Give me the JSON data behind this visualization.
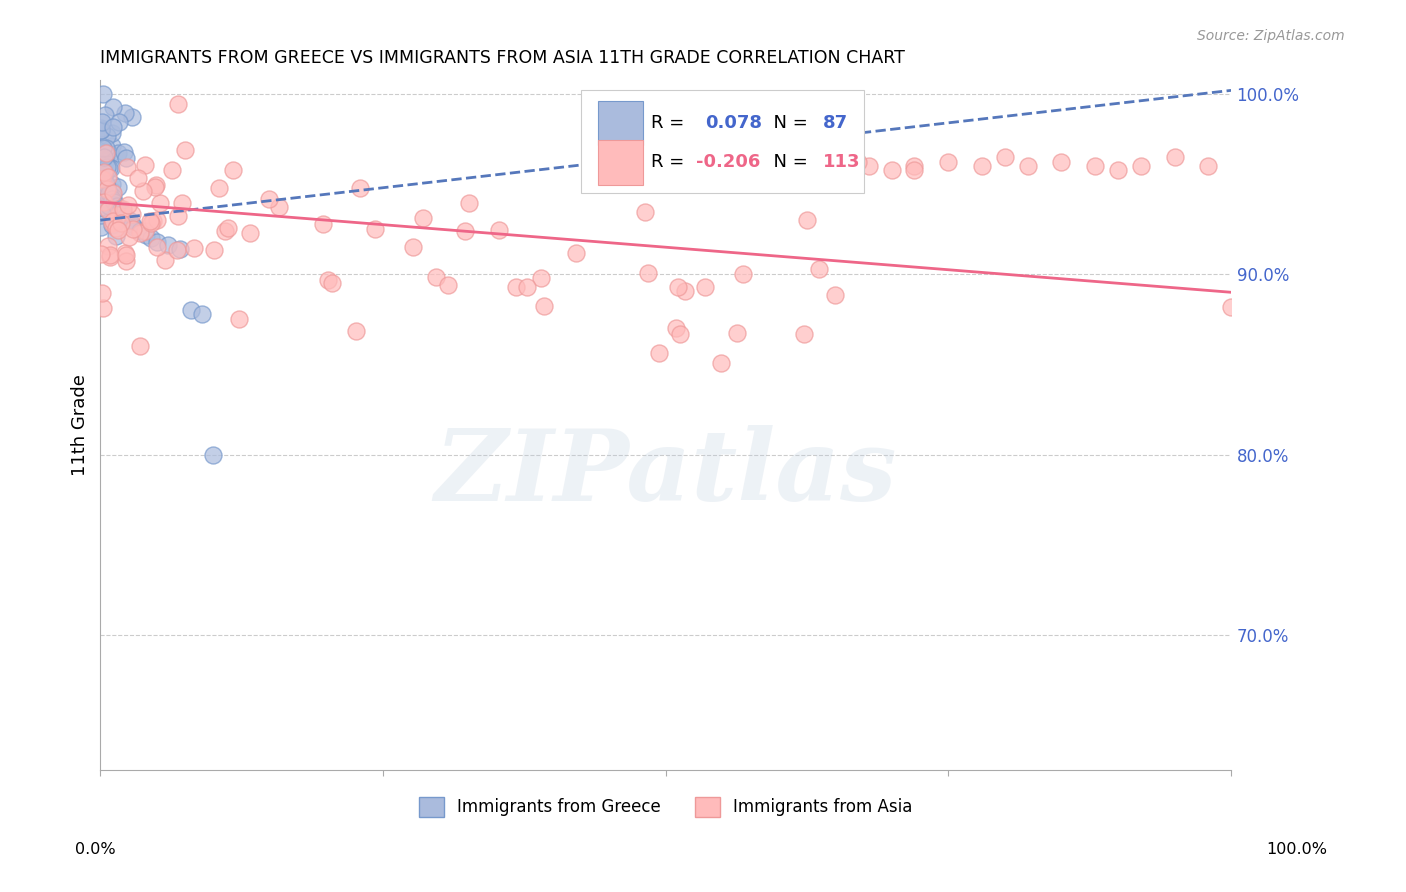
{
  "title": "IMMIGRANTS FROM GREECE VS IMMIGRANTS FROM ASIA 11TH GRADE CORRELATION CHART",
  "source": "Source: ZipAtlas.com",
  "ylabel": "11th Grade",
  "watermark": "ZIPatlas",
  "legend_blue_r_val": "0.078",
  "legend_blue_n_val": "87",
  "legend_pink_r_val": "-0.206",
  "legend_pink_n_val": "113",
  "legend_label_blue": "Immigrants from Greece",
  "legend_label_pink": "Immigrants from Asia",
  "blue_face_color": "#AABBDD",
  "blue_edge_color": "#7799CC",
  "pink_face_color": "#FFBBBB",
  "pink_edge_color": "#EE9999",
  "blue_trend_color": "#5577BB",
  "pink_trend_color": "#EE6688",
  "grid_color": "#CCCCCC",
  "right_axis_color": "#4466CC",
  "xlim": [
    0.0,
    1.0
  ],
  "ylim": [
    0.625,
    1.008
  ],
  "blue_trend_y0": 0.93,
  "blue_trend_y1": 1.002,
  "pink_trend_y0": 0.94,
  "pink_trend_y1": 0.89
}
